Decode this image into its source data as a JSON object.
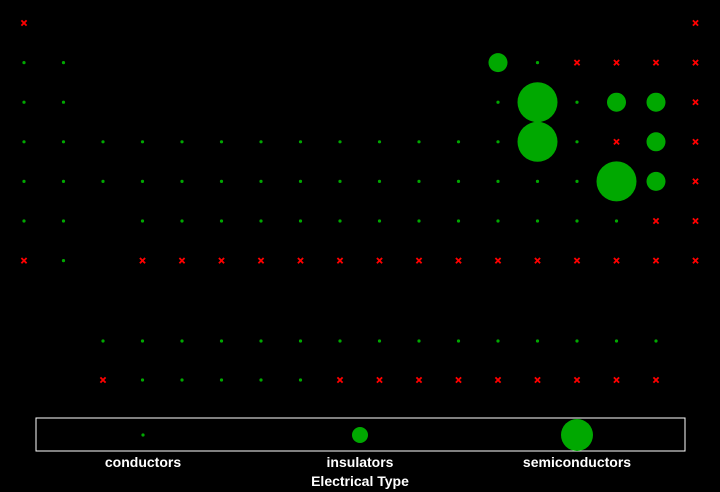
{
  "chart_data": {
    "type": "scatter",
    "description_of_axes": "periodic table grid: x = group (1-18), y = period (1-7), f-block rows 8-9 (columns 3-17)",
    "colors": {
      "dot": "#00a800",
      "cross": "#ff0000",
      "background": "#000000",
      "legend_border": "#ffffff"
    },
    "points": [
      {
        "col": 1,
        "row": 1,
        "mark": "x"
      },
      {
        "col": 18,
        "row": 1,
        "mark": "x"
      },
      {
        "col": 1,
        "row": 2,
        "mark": "dot",
        "size": "conductors"
      },
      {
        "col": 2,
        "row": 2,
        "mark": "dot",
        "size": "conductors"
      },
      {
        "col": 13,
        "row": 2,
        "mark": "dot",
        "size": "insulators"
      },
      {
        "col": 14,
        "row": 2,
        "mark": "dot",
        "size": "conductors"
      },
      {
        "col": 15,
        "row": 2,
        "mark": "x"
      },
      {
        "col": 16,
        "row": 2,
        "mark": "x"
      },
      {
        "col": 17,
        "row": 2,
        "mark": "x"
      },
      {
        "col": 18,
        "row": 2,
        "mark": "x"
      },
      {
        "col": 1,
        "row": 3,
        "mark": "dot",
        "size": "conductors"
      },
      {
        "col": 2,
        "row": 3,
        "mark": "dot",
        "size": "conductors"
      },
      {
        "col": 13,
        "row": 3,
        "mark": "dot",
        "size": "conductors"
      },
      {
        "col": 14,
        "row": 3,
        "mark": "dot",
        "size": "semiconductors"
      },
      {
        "col": 15,
        "row": 3,
        "mark": "dot",
        "size": "conductors"
      },
      {
        "col": 16,
        "row": 3,
        "mark": "dot",
        "size": "insulators"
      },
      {
        "col": 17,
        "row": 3,
        "mark": "dot",
        "size": "insulators"
      },
      {
        "col": 18,
        "row": 3,
        "mark": "x"
      },
      {
        "col": 1,
        "row": 4,
        "mark": "dot",
        "size": "conductors"
      },
      {
        "col": 2,
        "row": 4,
        "mark": "dot",
        "size": "conductors"
      },
      {
        "col": 3,
        "row": 4,
        "mark": "dot",
        "size": "conductors"
      },
      {
        "col": 4,
        "row": 4,
        "mark": "dot",
        "size": "conductors"
      },
      {
        "col": 5,
        "row": 4,
        "mark": "dot",
        "size": "conductors"
      },
      {
        "col": 6,
        "row": 4,
        "mark": "dot",
        "size": "conductors"
      },
      {
        "col": 7,
        "row": 4,
        "mark": "dot",
        "size": "conductors"
      },
      {
        "col": 8,
        "row": 4,
        "mark": "dot",
        "size": "conductors"
      },
      {
        "col": 9,
        "row": 4,
        "mark": "dot",
        "size": "conductors"
      },
      {
        "col": 10,
        "row": 4,
        "mark": "dot",
        "size": "conductors"
      },
      {
        "col": 11,
        "row": 4,
        "mark": "dot",
        "size": "conductors"
      },
      {
        "col": 12,
        "row": 4,
        "mark": "dot",
        "size": "conductors"
      },
      {
        "col": 13,
        "row": 4,
        "mark": "dot",
        "size": "conductors"
      },
      {
        "col": 14,
        "row": 4,
        "mark": "dot",
        "size": "semiconductors"
      },
      {
        "col": 15,
        "row": 4,
        "mark": "dot",
        "size": "conductors"
      },
      {
        "col": 16,
        "row": 4,
        "mark": "x"
      },
      {
        "col": 17,
        "row": 4,
        "mark": "dot",
        "size": "insulators"
      },
      {
        "col": 18,
        "row": 4,
        "mark": "x"
      },
      {
        "col": 1,
        "row": 5,
        "mark": "dot",
        "size": "conductors"
      },
      {
        "col": 2,
        "row": 5,
        "mark": "dot",
        "size": "conductors"
      },
      {
        "col": 3,
        "row": 5,
        "mark": "dot",
        "size": "conductors"
      },
      {
        "col": 4,
        "row": 5,
        "mark": "dot",
        "size": "conductors"
      },
      {
        "col": 5,
        "row": 5,
        "mark": "dot",
        "size": "conductors"
      },
      {
        "col": 6,
        "row": 5,
        "mark": "dot",
        "size": "conductors"
      },
      {
        "col": 7,
        "row": 5,
        "mark": "dot",
        "size": "conductors"
      },
      {
        "col": 8,
        "row": 5,
        "mark": "dot",
        "size": "conductors"
      },
      {
        "col": 9,
        "row": 5,
        "mark": "dot",
        "size": "conductors"
      },
      {
        "col": 10,
        "row": 5,
        "mark": "dot",
        "size": "conductors"
      },
      {
        "col": 11,
        "row": 5,
        "mark": "dot",
        "size": "conductors"
      },
      {
        "col": 12,
        "row": 5,
        "mark": "dot",
        "size": "conductors"
      },
      {
        "col": 13,
        "row": 5,
        "mark": "dot",
        "size": "conductors"
      },
      {
        "col": 14,
        "row": 5,
        "mark": "dot",
        "size": "conductors"
      },
      {
        "col": 15,
        "row": 5,
        "mark": "dot",
        "size": "conductors"
      },
      {
        "col": 16,
        "row": 5,
        "mark": "dot",
        "size": "semiconductors"
      },
      {
        "col": 17,
        "row": 5,
        "mark": "dot",
        "size": "insulators"
      },
      {
        "col": 18,
        "row": 5,
        "mark": "x"
      },
      {
        "col": 1,
        "row": 6,
        "mark": "dot",
        "size": "conductors"
      },
      {
        "col": 2,
        "row": 6,
        "mark": "dot",
        "size": "conductors"
      },
      {
        "col": 4,
        "row": 6,
        "mark": "dot",
        "size": "conductors"
      },
      {
        "col": 5,
        "row": 6,
        "mark": "dot",
        "size": "conductors"
      },
      {
        "col": 6,
        "row": 6,
        "mark": "dot",
        "size": "conductors"
      },
      {
        "col": 7,
        "row": 6,
        "mark": "dot",
        "size": "conductors"
      },
      {
        "col": 8,
        "row": 6,
        "mark": "dot",
        "size": "conductors"
      },
      {
        "col": 9,
        "row": 6,
        "mark": "dot",
        "size": "conductors"
      },
      {
        "col": 10,
        "row": 6,
        "mark": "dot",
        "size": "conductors"
      },
      {
        "col": 11,
        "row": 6,
        "mark": "dot",
        "size": "conductors"
      },
      {
        "col": 12,
        "row": 6,
        "mark": "dot",
        "size": "conductors"
      },
      {
        "col": 13,
        "row": 6,
        "mark": "dot",
        "size": "conductors"
      },
      {
        "col": 14,
        "row": 6,
        "mark": "dot",
        "size": "conductors"
      },
      {
        "col": 15,
        "row": 6,
        "mark": "dot",
        "size": "conductors"
      },
      {
        "col": 16,
        "row": 6,
        "mark": "dot",
        "size": "conductors"
      },
      {
        "col": 17,
        "row": 6,
        "mark": "x"
      },
      {
        "col": 18,
        "row": 6,
        "mark": "x"
      },
      {
        "col": 1,
        "row": 7,
        "mark": "x"
      },
      {
        "col": 2,
        "row": 7,
        "mark": "dot",
        "size": "conductors"
      },
      {
        "col": 4,
        "row": 7,
        "mark": "x"
      },
      {
        "col": 5,
        "row": 7,
        "mark": "x"
      },
      {
        "col": 6,
        "row": 7,
        "mark": "x"
      },
      {
        "col": 7,
        "row": 7,
        "mark": "x"
      },
      {
        "col": 8,
        "row": 7,
        "mark": "x"
      },
      {
        "col": 9,
        "row": 7,
        "mark": "x"
      },
      {
        "col": 10,
        "row": 7,
        "mark": "x"
      },
      {
        "col": 11,
        "row": 7,
        "mark": "x"
      },
      {
        "col": 12,
        "row": 7,
        "mark": "x"
      },
      {
        "col": 13,
        "row": 7,
        "mark": "x"
      },
      {
        "col": 14,
        "row": 7,
        "mark": "x"
      },
      {
        "col": 15,
        "row": 7,
        "mark": "x"
      },
      {
        "col": 16,
        "row": 7,
        "mark": "x"
      },
      {
        "col": 17,
        "row": 7,
        "mark": "x"
      },
      {
        "col": 18,
        "row": 7,
        "mark": "x"
      },
      {
        "col": 3,
        "row": 8,
        "mark": "dot",
        "size": "conductors"
      },
      {
        "col": 4,
        "row": 8,
        "mark": "dot",
        "size": "conductors"
      },
      {
        "col": 5,
        "row": 8,
        "mark": "dot",
        "size": "conductors"
      },
      {
        "col": 6,
        "row": 8,
        "mark": "dot",
        "size": "conductors"
      },
      {
        "col": 7,
        "row": 8,
        "mark": "dot",
        "size": "conductors"
      },
      {
        "col": 8,
        "row": 8,
        "mark": "dot",
        "size": "conductors"
      },
      {
        "col": 9,
        "row": 8,
        "mark": "dot",
        "size": "conductors"
      },
      {
        "col": 10,
        "row": 8,
        "mark": "dot",
        "size": "conductors"
      },
      {
        "col": 11,
        "row": 8,
        "mark": "dot",
        "size": "conductors"
      },
      {
        "col": 12,
        "row": 8,
        "mark": "dot",
        "size": "conductors"
      },
      {
        "col": 13,
        "row": 8,
        "mark": "dot",
        "size": "conductors"
      },
      {
        "col": 14,
        "row": 8,
        "mark": "dot",
        "size": "conductors"
      },
      {
        "col": 15,
        "row": 8,
        "mark": "dot",
        "size": "conductors"
      },
      {
        "col": 16,
        "row": 8,
        "mark": "dot",
        "size": "conductors"
      },
      {
        "col": 17,
        "row": 8,
        "mark": "dot",
        "size": "conductors"
      },
      {
        "col": 3,
        "row": 9,
        "mark": "x"
      },
      {
        "col": 4,
        "row": 9,
        "mark": "dot",
        "size": "conductors"
      },
      {
        "col": 5,
        "row": 9,
        "mark": "dot",
        "size": "conductors"
      },
      {
        "col": 6,
        "row": 9,
        "mark": "dot",
        "size": "conductors"
      },
      {
        "col": 7,
        "row": 9,
        "mark": "dot",
        "size": "conductors"
      },
      {
        "col": 8,
        "row": 9,
        "mark": "dot",
        "size": "conductors"
      },
      {
        "col": 9,
        "row": 9,
        "mark": "x"
      },
      {
        "col": 10,
        "row": 9,
        "mark": "x"
      },
      {
        "col": 11,
        "row": 9,
        "mark": "x"
      },
      {
        "col": 12,
        "row": 9,
        "mark": "x"
      },
      {
        "col": 13,
        "row": 9,
        "mark": "x"
      },
      {
        "col": 14,
        "row": 9,
        "mark": "x"
      },
      {
        "col": 15,
        "row": 9,
        "mark": "x"
      },
      {
        "col": 16,
        "row": 9,
        "mark": "x"
      },
      {
        "col": 17,
        "row": 9,
        "mark": "x"
      }
    ],
    "legend": {
      "title": "Electrical Type",
      "placement": "bottom",
      "entries": [
        {
          "label": "conductors",
          "size": "conductors"
        },
        {
          "label": "insulators",
          "size": "insulators"
        },
        {
          "label": "semiconductors",
          "size": "semiconductors"
        }
      ]
    }
  }
}
